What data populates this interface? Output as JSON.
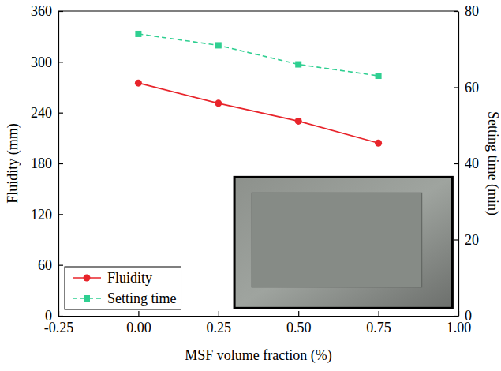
{
  "chart_data": {
    "type": "line",
    "xlabel": "MSF volume fraction (%)",
    "ylabel": "Fluidity (mm)",
    "y2label": "Setting time (min)",
    "x": [
      0,
      0.25,
      0.5,
      0.75
    ],
    "xlim": [
      -0.25,
      1.0
    ],
    "xticks": [
      -0.25,
      {
        "value": 0,
        "label": "0.00"
      },
      0.25,
      {
        "value": 0.5,
        "label": "0.50"
      },
      0.75,
      {
        "value": 1.0,
        "label": "1.00"
      }
    ],
    "ylim": [
      0,
      360
    ],
    "yticks": [
      0,
      60,
      120,
      180,
      240,
      300,
      360
    ],
    "y2lim": [
      0,
      80
    ],
    "y2ticks": [
      0,
      20,
      40,
      60,
      80
    ],
    "grid": false,
    "legend": "lower left",
    "series": [
      {
        "name": "Fluidity",
        "color": "#e8242b",
        "marker": "circle",
        "line_style": "solid",
        "values": [
          275,
          251,
          230,
          204
        ]
      },
      {
        "name": "Setting time",
        "color": "#2fcf91",
        "marker": "square",
        "line_style": "dashed",
        "axis": "y2",
        "values": [
          74,
          71,
          66,
          63
        ]
      }
    ]
  }
}
